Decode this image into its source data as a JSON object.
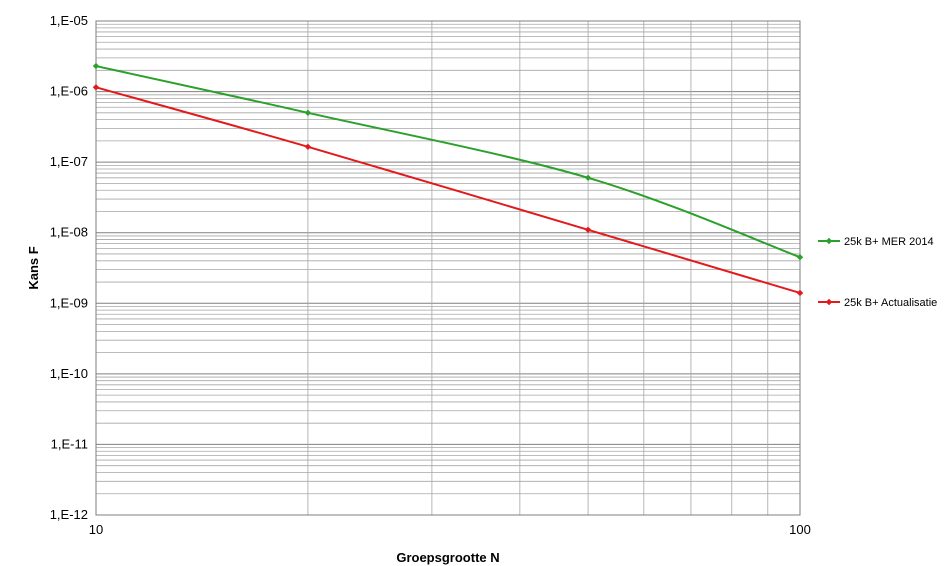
{
  "chart_data": {
    "type": "line",
    "x_scale": "log",
    "y_scale": "log",
    "xlabel": "Groepsgrootte N",
    "ylabel": "Kans F",
    "xlim": [
      10,
      100
    ],
    "ylim": [
      1e-12,
      1e-05
    ],
    "x_ticks": [
      {
        "value": 10,
        "label": "10"
      },
      {
        "value": 100,
        "label": "100"
      }
    ],
    "y_ticks": [
      {
        "value": 1e-05,
        "label": "1,E-05"
      },
      {
        "value": 1e-06,
        "label": "1,E-06"
      },
      {
        "value": 1e-07,
        "label": "1,E-07"
      },
      {
        "value": 1e-08,
        "label": "1,E-08"
      },
      {
        "value": 1e-09,
        "label": "1,E-09"
      },
      {
        "value": 1e-10,
        "label": "1,E-10"
      },
      {
        "value": 1e-11,
        "label": "1,E-11"
      },
      {
        "value": 1e-12,
        "label": "1,E-12"
      }
    ],
    "grid": true,
    "legend_position": "right",
    "series": [
      {
        "name": "25k B+ MER 2014",
        "color": "#2ca02c",
        "points": [
          [
            10,
            2.3e-06
          ],
          [
            20,
            5e-07
          ],
          [
            50,
            6e-08
          ],
          [
            100,
            4.5e-09
          ]
        ]
      },
      {
        "name": "25k B+ Actualisatie",
        "color": "#e31a1c",
        "points": [
          [
            10,
            1.15e-06
          ],
          [
            20,
            1.65e-07
          ],
          [
            50,
            1.1e-08
          ],
          [
            100,
            1.4e-09
          ]
        ]
      }
    ]
  }
}
